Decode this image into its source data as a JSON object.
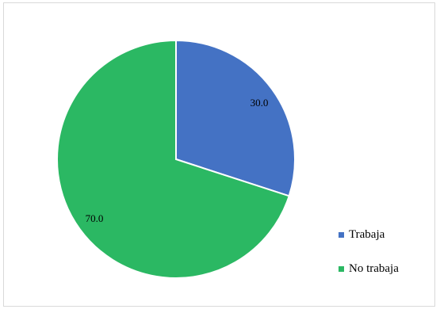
{
  "chart_data": {
    "type": "pie",
    "categories": [
      "Trabaja",
      "No trabaja"
    ],
    "values": [
      30.0,
      70.0
    ],
    "data_labels": [
      "30.0",
      "70.0"
    ],
    "colors": [
      "#4472C4",
      "#2BB863"
    ],
    "start_angle_deg": 0,
    "direction": "clockwise",
    "legend_position": "right"
  }
}
